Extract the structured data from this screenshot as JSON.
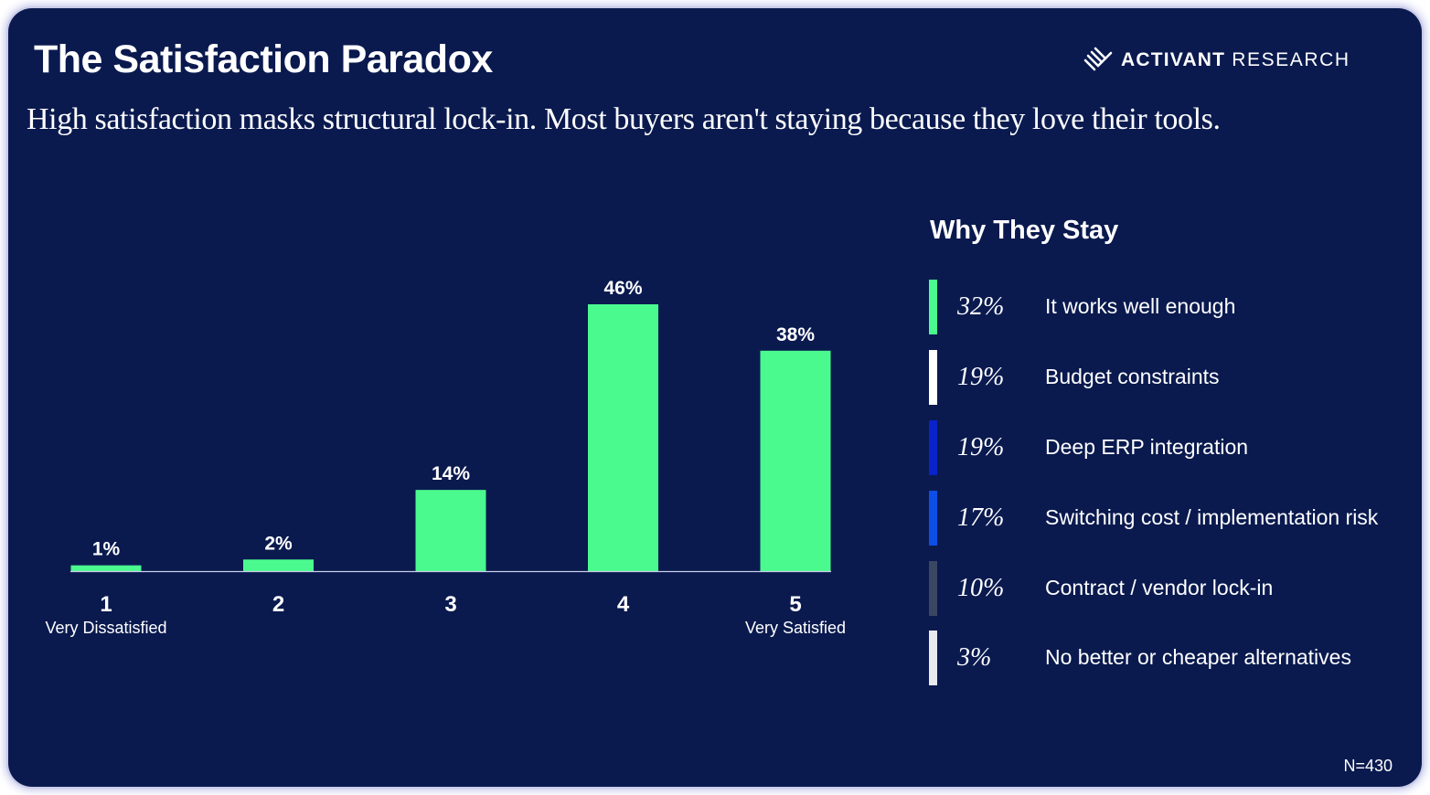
{
  "title": "The Satisfaction Paradox",
  "subtitle": "High satisfaction masks structural lock-in. Most buyers aren't staying because they love their tools.",
  "brand": {
    "primary": "ACTIVANT",
    "secondary": "RESEARCH",
    "icon": "activant-stripes-logo-icon"
  },
  "colors": {
    "background": "#0a1a4f",
    "bar": "#4bfa8e",
    "text": "#ffffff"
  },
  "chart_data": {
    "type": "bar",
    "title": "",
    "xlabel": "",
    "ylabel": "",
    "categories": [
      "1",
      "2",
      "3",
      "4",
      "5"
    ],
    "category_sublabels": [
      "Very Dissatisfied",
      "",
      "",
      "",
      "Very Satisfied"
    ],
    "values": [
      1,
      2,
      14,
      46,
      38
    ],
    "value_labels": [
      "1%",
      "2%",
      "14%",
      "46%",
      "38%"
    ],
    "unit": "%",
    "ylim": [
      0,
      46
    ],
    "grid": false,
    "legend": "none",
    "bar_color": "#4bfa8e"
  },
  "reasons_panel": {
    "title": "Why They Stay",
    "items": [
      {
        "percent": "32%",
        "label": "It works well enough",
        "color": "#4bfa8e"
      },
      {
        "percent": "19%",
        "label": "Budget constraints",
        "color": "#ffffff"
      },
      {
        "percent": "19%",
        "label": "Deep ERP integration",
        "color": "#0a22c9"
      },
      {
        "percent": "17%",
        "label": "Switching cost / implementation risk",
        "color": "#0d4fe6"
      },
      {
        "percent": "10%",
        "label": "Contract / vendor lock-in",
        "color": "#3b4761"
      },
      {
        "percent": "3%",
        "label": "No better or cheaper alternatives",
        "color": "#e9e9ee"
      }
    ]
  },
  "footnote": "N=430"
}
